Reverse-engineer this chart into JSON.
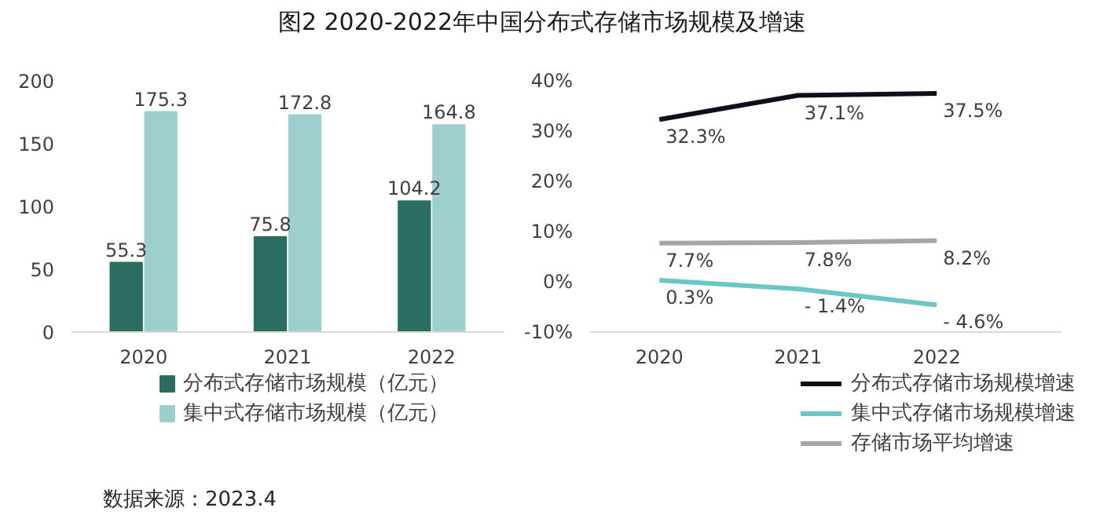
{
  "chart_data": [
    {
      "type": "bar",
      "title": "图2 2020-2022年中国分布式存储市场规模及增速",
      "categories": [
        "2020",
        "2021",
        "2022"
      ],
      "series": [
        {
          "name": "分布式存储市场规模（亿元）",
          "color": "#2b6e60",
          "values": [
            55.3,
            75.8,
            104.2
          ]
        },
        {
          "name": "集中式存储市场规模（亿元）",
          "color": "#9ecfcf",
          "values": [
            175.3,
            172.8,
            164.8
          ]
        }
      ],
      "ylim": [
        0,
        200
      ],
      "yticks": [
        0,
        50,
        100,
        150,
        200
      ],
      "grid": false,
      "legend": "bottom",
      "data_labels": true,
      "annotations": [
        "数据来源：2023.4"
      ]
    },
    {
      "type": "line",
      "categories": [
        "2020",
        "2021",
        "2022"
      ],
      "series": [
        {
          "name": "分布式存储市场规模增速",
          "color": "#0d0f1a",
          "values": [
            32.3,
            37.1,
            37.5
          ]
        },
        {
          "name": "集中式存储市场规模增速",
          "color": "#6cc6c4",
          "values": [
            0.3,
            -1.4,
            -4.6
          ]
        },
        {
          "name": "存储市场平均增速",
          "color": "#a6a6a6",
          "values": [
            7.7,
            7.8,
            8.2
          ]
        }
      ],
      "ylim": [
        -10,
        40
      ],
      "yticks": [
        {
          "value": -10,
          "label": "-10%"
        },
        {
          "value": 0,
          "label": "0%"
        },
        {
          "value": 10,
          "label": "10%"
        },
        {
          "value": 20,
          "label": "20%"
        },
        {
          "value": 30,
          "label": "30%"
        },
        {
          "value": 40,
          "label": "40%"
        }
      ],
      "value_labels": [
        [
          "32.3%",
          "37.1%",
          "37.5%"
        ],
        [
          "0.3%",
          "- 1.4%",
          "- 4.6%"
        ],
        [
          "7.7%",
          "7.8%",
          "8.2%"
        ]
      ],
      "grid": false,
      "legend": "bottom right",
      "marker": "none",
      "line_style": "solid"
    }
  ]
}
